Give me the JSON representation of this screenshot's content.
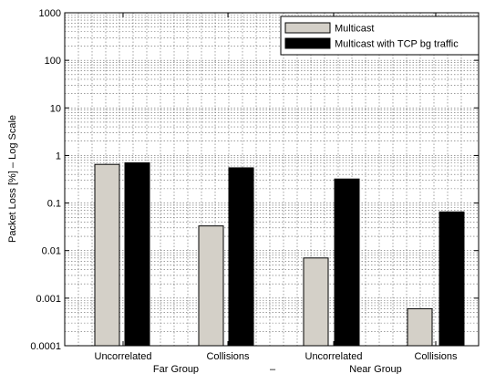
{
  "chart_data": {
    "type": "bar",
    "scale": "log",
    "ylabel": "Packet Loss [%] – Log Scale",
    "ylim": [
      0.0001,
      1000
    ],
    "yticks": [
      {
        "value": 0.0001,
        "label": "0.0001"
      },
      {
        "value": 0.001,
        "label": "0.001"
      },
      {
        "value": 0.01,
        "label": "0.01"
      },
      {
        "value": 0.1,
        "label": "0.1"
      },
      {
        "value": 1,
        "label": "1"
      },
      {
        "value": 10,
        "label": "10"
      },
      {
        "value": 100,
        "label": "100"
      },
      {
        "value": 1000,
        "label": "1000"
      }
    ],
    "categories": [
      "Uncorrelated",
      "Collisions",
      "Uncorrelated",
      "Collisions"
    ],
    "group_labels": [
      "Far Group",
      "–",
      "Near Group"
    ],
    "grid": true,
    "legend_position": "top-right",
    "series": [
      {
        "name": "Multicast",
        "color": "#d4d0c8",
        "values": [
          0.65,
          0.033,
          0.007,
          0.0006
        ]
      },
      {
        "name": "Multicast with TCP bg traffic",
        "color": "#000000",
        "values": [
          0.7,
          0.55,
          0.32,
          0.065
        ]
      }
    ]
  }
}
